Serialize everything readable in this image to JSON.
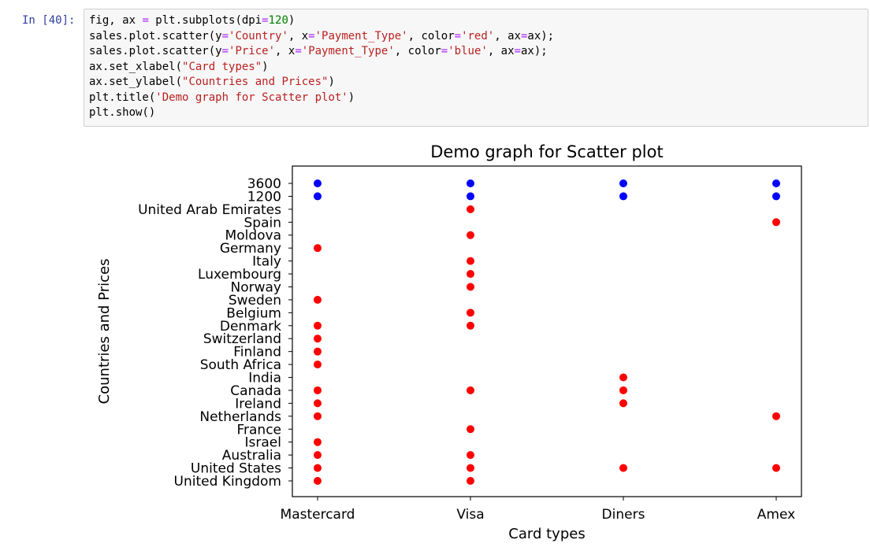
{
  "cell": {
    "prompt": "In [40]:",
    "code_lines": [
      [
        [
          "fig, ax ",
          "t"
        ],
        [
          "=",
          "o"
        ],
        [
          " plt.subplots(dpi",
          "t"
        ],
        [
          "=",
          "o"
        ],
        [
          "120",
          "n"
        ],
        [
          ")",
          "t"
        ]
      ],
      [
        [
          "sales.plot.scatter(y",
          "t"
        ],
        [
          "=",
          "o"
        ],
        [
          "'Country'",
          "s"
        ],
        [
          ", x",
          "t"
        ],
        [
          "=",
          "o"
        ],
        [
          "'Payment_Type'",
          "s"
        ],
        [
          ", color",
          "t"
        ],
        [
          "=",
          "o"
        ],
        [
          "'red'",
          "s"
        ],
        [
          ", ax",
          "t"
        ],
        [
          "=",
          "o"
        ],
        [
          "ax);",
          "t"
        ]
      ],
      [
        [
          "sales.plot.scatter(y",
          "t"
        ],
        [
          "=",
          "o"
        ],
        [
          "'Price'",
          "s"
        ],
        [
          ", x",
          "t"
        ],
        [
          "=",
          "o"
        ],
        [
          "'Payment_Type'",
          "s"
        ],
        [
          ", color",
          "t"
        ],
        [
          "=",
          "o"
        ],
        [
          "'blue'",
          "s"
        ],
        [
          ", ax",
          "t"
        ],
        [
          "=",
          "o"
        ],
        [
          "ax);",
          "t"
        ]
      ],
      [
        [
          "ax.set_xlabel(",
          "t"
        ],
        [
          "\"Card types\"",
          "s"
        ],
        [
          ")",
          "t"
        ]
      ],
      [
        [
          "ax.set_ylabel(",
          "t"
        ],
        [
          "\"Countries and Prices\"",
          "s"
        ],
        [
          ")",
          "t"
        ]
      ],
      [
        [
          "plt.title(",
          "t"
        ],
        [
          "'Demo graph for Scatter plot'",
          "s"
        ],
        [
          ")",
          "t"
        ]
      ],
      [
        [
          "plt.show()",
          "t"
        ]
      ]
    ]
  },
  "chart_data": {
    "type": "scatter",
    "title": "Demo graph for Scatter plot",
    "xlabel": "Card types",
    "ylabel": "Countries and Prices",
    "x_categories": [
      "Mastercard",
      "Visa",
      "Diners",
      "Amex"
    ],
    "y_categories": [
      "United Kingdom",
      "United States",
      "Australia",
      "Israel",
      "France",
      "Netherlands",
      "Ireland",
      "Canada",
      "India",
      "South Africa",
      "Finland",
      "Switzerland",
      "Denmark",
      "Belgium",
      "Sweden",
      "Norway",
      "Luxembourg",
      "Italy",
      "Germany",
      "Moldova",
      "Spain",
      "United Arab Emirates",
      "1200",
      "3600"
    ],
    "grid": false,
    "series": [
      {
        "color": "#ff0000",
        "points": [
          [
            "Mastercard",
            "United Kingdom"
          ],
          [
            "Mastercard",
            "United States"
          ],
          [
            "Mastercard",
            "Australia"
          ],
          [
            "Mastercard",
            "Israel"
          ],
          [
            "Mastercard",
            "Netherlands"
          ],
          [
            "Mastercard",
            "Ireland"
          ],
          [
            "Mastercard",
            "Canada"
          ],
          [
            "Mastercard",
            "South Africa"
          ],
          [
            "Mastercard",
            "Finland"
          ],
          [
            "Mastercard",
            "Switzerland"
          ],
          [
            "Mastercard",
            "Denmark"
          ],
          [
            "Mastercard",
            "Sweden"
          ],
          [
            "Mastercard",
            "Germany"
          ],
          [
            "Visa",
            "United Kingdom"
          ],
          [
            "Visa",
            "United States"
          ],
          [
            "Visa",
            "Australia"
          ],
          [
            "Visa",
            "France"
          ],
          [
            "Visa",
            "Canada"
          ],
          [
            "Visa",
            "Denmark"
          ],
          [
            "Visa",
            "Belgium"
          ],
          [
            "Visa",
            "Norway"
          ],
          [
            "Visa",
            "Luxembourg"
          ],
          [
            "Visa",
            "Italy"
          ],
          [
            "Visa",
            "Moldova"
          ],
          [
            "Visa",
            "United Arab Emirates"
          ],
          [
            "Diners",
            "United States"
          ],
          [
            "Diners",
            "Ireland"
          ],
          [
            "Diners",
            "Canada"
          ],
          [
            "Diners",
            "India"
          ],
          [
            "Amex",
            "United States"
          ],
          [
            "Amex",
            "Netherlands"
          ],
          [
            "Amex",
            "Spain"
          ]
        ]
      },
      {
        "color": "#0000ff",
        "points": [
          [
            "Mastercard",
            "1200"
          ],
          [
            "Mastercard",
            "3600"
          ],
          [
            "Visa",
            "1200"
          ],
          [
            "Visa",
            "3600"
          ],
          [
            "Diners",
            "1200"
          ],
          [
            "Diners",
            "3600"
          ],
          [
            "Amex",
            "1200"
          ],
          [
            "Amex",
            "3600"
          ]
        ]
      }
    ]
  }
}
